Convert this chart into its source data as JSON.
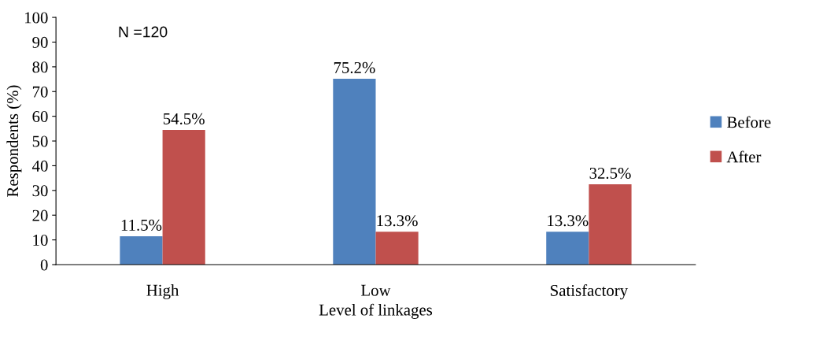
{
  "chart_data": {
    "type": "bar",
    "xlabel": "Level of linkages",
    "ylabel": "Respondents (%)",
    "categories": [
      "High",
      "Low",
      "Satisfactory"
    ],
    "series": [
      {
        "name": "Before",
        "color": "#4f81bd",
        "values": [
          11.5,
          75.2,
          13.3
        ],
        "value_labels": [
          "11.5%",
          "75.2%",
          "13.3%"
        ]
      },
      {
        "name": "After",
        "color": "#c0504d",
        "values": [
          54.5,
          13.3,
          32.5
        ],
        "value_labels": [
          "54.5%",
          "13.3%",
          "32.5%"
        ]
      }
    ],
    "ylim": [
      0,
      100
    ],
    "yticks": [
      0,
      10,
      20,
      30,
      40,
      50,
      60,
      70,
      80,
      90,
      100
    ],
    "annotations": [
      "N =120"
    ],
    "legend": "right",
    "grid": false
  }
}
